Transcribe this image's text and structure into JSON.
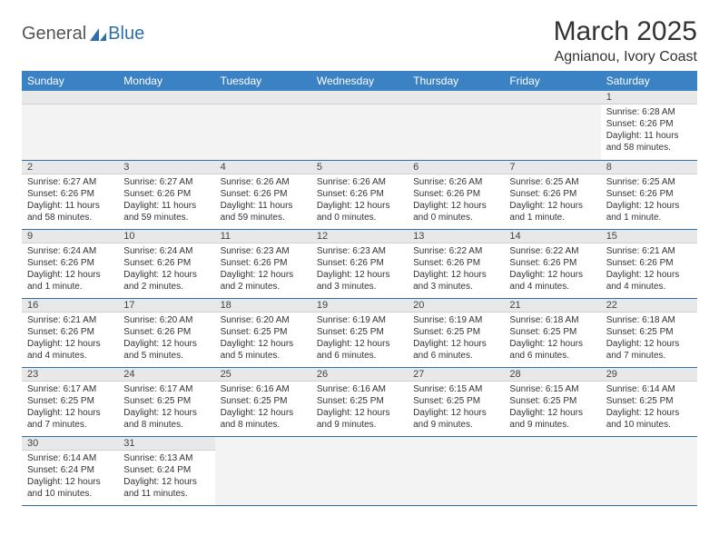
{
  "logo": {
    "text1": "General",
    "text2": "Blue"
  },
  "title": "March 2025",
  "location": "Agnianou, Ivory Coast",
  "colors": {
    "header_bg": "#3b82c4",
    "header_text": "#ffffff",
    "daynum_bg": "#e8e8e8",
    "border": "#2f6fa8",
    "logo_blue": "#2f6fa8"
  },
  "weekdays": [
    "Sunday",
    "Monday",
    "Tuesday",
    "Wednesday",
    "Thursday",
    "Friday",
    "Saturday"
  ],
  "weeks": [
    [
      null,
      null,
      null,
      null,
      null,
      null,
      {
        "n": "1",
        "sr": "Sunrise: 6:28 AM",
        "ss": "Sunset: 6:26 PM",
        "dl": "Daylight: 11 hours and 58 minutes."
      }
    ],
    [
      {
        "n": "2",
        "sr": "Sunrise: 6:27 AM",
        "ss": "Sunset: 6:26 PM",
        "dl": "Daylight: 11 hours and 58 minutes."
      },
      {
        "n": "3",
        "sr": "Sunrise: 6:27 AM",
        "ss": "Sunset: 6:26 PM",
        "dl": "Daylight: 11 hours and 59 minutes."
      },
      {
        "n": "4",
        "sr": "Sunrise: 6:26 AM",
        "ss": "Sunset: 6:26 PM",
        "dl": "Daylight: 11 hours and 59 minutes."
      },
      {
        "n": "5",
        "sr": "Sunrise: 6:26 AM",
        "ss": "Sunset: 6:26 PM",
        "dl": "Daylight: 12 hours and 0 minutes."
      },
      {
        "n": "6",
        "sr": "Sunrise: 6:26 AM",
        "ss": "Sunset: 6:26 PM",
        "dl": "Daylight: 12 hours and 0 minutes."
      },
      {
        "n": "7",
        "sr": "Sunrise: 6:25 AM",
        "ss": "Sunset: 6:26 PM",
        "dl": "Daylight: 12 hours and 1 minute."
      },
      {
        "n": "8",
        "sr": "Sunrise: 6:25 AM",
        "ss": "Sunset: 6:26 PM",
        "dl": "Daylight: 12 hours and 1 minute."
      }
    ],
    [
      {
        "n": "9",
        "sr": "Sunrise: 6:24 AM",
        "ss": "Sunset: 6:26 PM",
        "dl": "Daylight: 12 hours and 1 minute."
      },
      {
        "n": "10",
        "sr": "Sunrise: 6:24 AM",
        "ss": "Sunset: 6:26 PM",
        "dl": "Daylight: 12 hours and 2 minutes."
      },
      {
        "n": "11",
        "sr": "Sunrise: 6:23 AM",
        "ss": "Sunset: 6:26 PM",
        "dl": "Daylight: 12 hours and 2 minutes."
      },
      {
        "n": "12",
        "sr": "Sunrise: 6:23 AM",
        "ss": "Sunset: 6:26 PM",
        "dl": "Daylight: 12 hours and 3 minutes."
      },
      {
        "n": "13",
        "sr": "Sunrise: 6:22 AM",
        "ss": "Sunset: 6:26 PM",
        "dl": "Daylight: 12 hours and 3 minutes."
      },
      {
        "n": "14",
        "sr": "Sunrise: 6:22 AM",
        "ss": "Sunset: 6:26 PM",
        "dl": "Daylight: 12 hours and 4 minutes."
      },
      {
        "n": "15",
        "sr": "Sunrise: 6:21 AM",
        "ss": "Sunset: 6:26 PM",
        "dl": "Daylight: 12 hours and 4 minutes."
      }
    ],
    [
      {
        "n": "16",
        "sr": "Sunrise: 6:21 AM",
        "ss": "Sunset: 6:26 PM",
        "dl": "Daylight: 12 hours and 4 minutes."
      },
      {
        "n": "17",
        "sr": "Sunrise: 6:20 AM",
        "ss": "Sunset: 6:26 PM",
        "dl": "Daylight: 12 hours and 5 minutes."
      },
      {
        "n": "18",
        "sr": "Sunrise: 6:20 AM",
        "ss": "Sunset: 6:25 PM",
        "dl": "Daylight: 12 hours and 5 minutes."
      },
      {
        "n": "19",
        "sr": "Sunrise: 6:19 AM",
        "ss": "Sunset: 6:25 PM",
        "dl": "Daylight: 12 hours and 6 minutes."
      },
      {
        "n": "20",
        "sr": "Sunrise: 6:19 AM",
        "ss": "Sunset: 6:25 PM",
        "dl": "Daylight: 12 hours and 6 minutes."
      },
      {
        "n": "21",
        "sr": "Sunrise: 6:18 AM",
        "ss": "Sunset: 6:25 PM",
        "dl": "Daylight: 12 hours and 6 minutes."
      },
      {
        "n": "22",
        "sr": "Sunrise: 6:18 AM",
        "ss": "Sunset: 6:25 PM",
        "dl": "Daylight: 12 hours and 7 minutes."
      }
    ],
    [
      {
        "n": "23",
        "sr": "Sunrise: 6:17 AM",
        "ss": "Sunset: 6:25 PM",
        "dl": "Daylight: 12 hours and 7 minutes."
      },
      {
        "n": "24",
        "sr": "Sunrise: 6:17 AM",
        "ss": "Sunset: 6:25 PM",
        "dl": "Daylight: 12 hours and 8 minutes."
      },
      {
        "n": "25",
        "sr": "Sunrise: 6:16 AM",
        "ss": "Sunset: 6:25 PM",
        "dl": "Daylight: 12 hours and 8 minutes."
      },
      {
        "n": "26",
        "sr": "Sunrise: 6:16 AM",
        "ss": "Sunset: 6:25 PM",
        "dl": "Daylight: 12 hours and 9 minutes."
      },
      {
        "n": "27",
        "sr": "Sunrise: 6:15 AM",
        "ss": "Sunset: 6:25 PM",
        "dl": "Daylight: 12 hours and 9 minutes."
      },
      {
        "n": "28",
        "sr": "Sunrise: 6:15 AM",
        "ss": "Sunset: 6:25 PM",
        "dl": "Daylight: 12 hours and 9 minutes."
      },
      {
        "n": "29",
        "sr": "Sunrise: 6:14 AM",
        "ss": "Sunset: 6:25 PM",
        "dl": "Daylight: 12 hours and 10 minutes."
      }
    ],
    [
      {
        "n": "30",
        "sr": "Sunrise: 6:14 AM",
        "ss": "Sunset: 6:24 PM",
        "dl": "Daylight: 12 hours and 10 minutes."
      },
      {
        "n": "31",
        "sr": "Sunrise: 6:13 AM",
        "ss": "Sunset: 6:24 PM",
        "dl": "Daylight: 12 hours and 11 minutes."
      },
      null,
      null,
      null,
      null,
      null
    ]
  ]
}
